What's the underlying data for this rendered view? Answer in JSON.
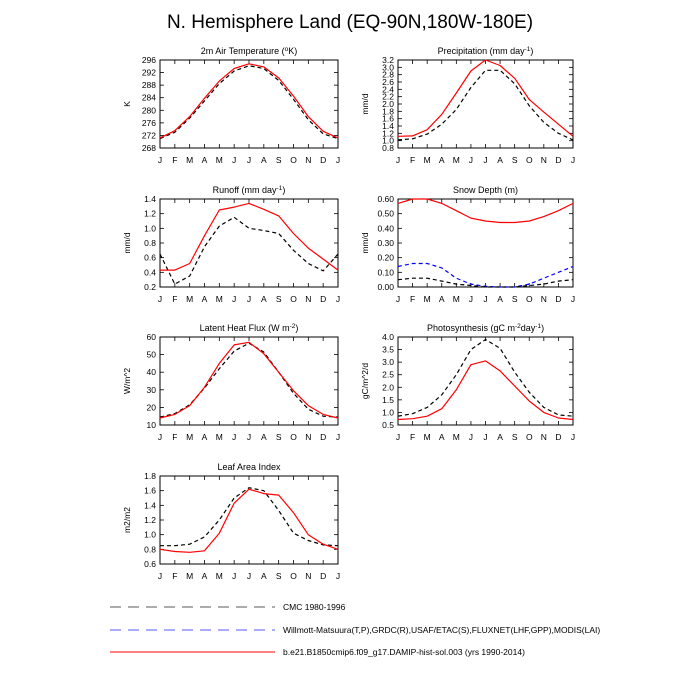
{
  "figure": {
    "title": "N. Hemisphere Land (EQ-90N,180W-180E)",
    "months": [
      "J",
      "F",
      "M",
      "A",
      "M",
      "J",
      "J",
      "A",
      "S",
      "O",
      "N",
      "D",
      "J"
    ]
  },
  "legend": [
    {
      "label": "CMC 1980-1996",
      "color": "#000000",
      "dash": "dashed"
    },
    {
      "label": "Willmott-Matsuura(T,P),GRDC(R),USAF/ETAC(S),FLUXNET(LHF,GPP),MODIS(LAI)",
      "color": "#0000ff",
      "dash": "dashed"
    },
    {
      "label": "b.e21.B1850cmip6.f09_g17.DAMIP-hist-sol.003 (yrs 1990-2014)",
      "color": "#ff0000",
      "dash": "solid"
    }
  ],
  "chart_data": [
    {
      "type": "line",
      "title": "2m Air Temperature (°K)",
      "ylabel": "K",
      "ylim": [
        268,
        296
      ],
      "yticks": [
        268,
        272,
        276,
        280,
        284,
        288,
        292,
        296
      ],
      "series": [
        {
          "color": "#000000",
          "dash": "dashed",
          "values": [
            271.0,
            273.0,
            277.5,
            283.0,
            288.5,
            292.5,
            294.2,
            293.3,
            289.5,
            283.5,
            277.0,
            272.5,
            271.0
          ]
        },
        {
          "color": "#ff0000",
          "dash": "solid",
          "values": [
            271.2,
            273.5,
            278.0,
            283.8,
            289.3,
            293.3,
            294.8,
            293.8,
            290.3,
            284.5,
            278.0,
            273.3,
            271.2
          ]
        }
      ]
    },
    {
      "type": "line",
      "title": "Precipitation (mm day-1)",
      "ylabel": "mm/d",
      "ylim": [
        0.8,
        3.2
      ],
      "yticks": [
        0.8,
        1.0,
        1.2,
        1.4,
        1.6,
        1.8,
        2.0,
        2.2,
        2.4,
        2.6,
        2.8,
        3.0,
        3.2
      ],
      "series": [
        {
          "color": "#000000",
          "dash": "dashed",
          "values": [
            1.02,
            1.05,
            1.18,
            1.45,
            1.85,
            2.45,
            2.92,
            2.92,
            2.55,
            1.95,
            1.5,
            1.2,
            1.02
          ]
        },
        {
          "color": "#ff0000",
          "dash": "solid",
          "values": [
            1.12,
            1.13,
            1.3,
            1.72,
            2.3,
            2.9,
            3.2,
            3.05,
            2.7,
            2.12,
            1.78,
            1.45,
            1.12
          ]
        }
      ]
    },
    {
      "type": "line",
      "title": "Runoff (mm day-1)",
      "ylabel": "mm/d",
      "ylim": [
        0.2,
        1.4
      ],
      "yticks": [
        0.2,
        0.4,
        0.6,
        0.8,
        1.0,
        1.2,
        1.4
      ],
      "series": [
        {
          "color": "#000000",
          "dash": "dashed",
          "values": [
            0.65,
            0.24,
            0.35,
            0.75,
            1.03,
            1.15,
            1.0,
            0.97,
            0.93,
            0.7,
            0.52,
            0.42,
            0.65
          ]
        },
        {
          "color": "#ff0000",
          "dash": "solid",
          "values": [
            0.43,
            0.43,
            0.52,
            0.9,
            1.25,
            1.29,
            1.34,
            1.26,
            1.17,
            0.93,
            0.73,
            0.58,
            0.43
          ]
        }
      ]
    },
    {
      "type": "line",
      "title": "Snow Depth (m)",
      "ylabel": "mm/d",
      "ylim": [
        0,
        0.6
      ],
      "yticks": [
        0.0,
        0.1,
        0.2,
        0.3,
        0.4,
        0.5,
        0.6
      ],
      "series": [
        {
          "color": "#0000ff",
          "dash": "dashed",
          "values": [
            0.14,
            0.16,
            0.16,
            0.13,
            0.06,
            0.02,
            0.005,
            0.0,
            0.0,
            0.02,
            0.06,
            0.1,
            0.14
          ]
        },
        {
          "color": "#000000",
          "dash": "dashed",
          "values": [
            0.05,
            0.06,
            0.06,
            0.04,
            0.02,
            0.01,
            0.0,
            0.0,
            0.0,
            0.01,
            0.02,
            0.04,
            0.05
          ]
        },
        {
          "color": "#ff0000",
          "dash": "solid",
          "values": [
            0.57,
            0.6,
            0.6,
            0.57,
            0.52,
            0.47,
            0.45,
            0.44,
            0.44,
            0.45,
            0.48,
            0.52,
            0.57
          ]
        }
      ]
    },
    {
      "type": "line",
      "title": "Latent Heat Flux (W m-2)",
      "ylabel": "W/m^2",
      "ylim": [
        10,
        60
      ],
      "yticks": [
        10,
        20,
        30,
        40,
        50,
        60
      ],
      "series": [
        {
          "color": "#000000",
          "dash": "dashed",
          "values": [
            14.5,
            16.5,
            21.5,
            31.0,
            42.0,
            52.0,
            56.5,
            51.5,
            40.0,
            28.0,
            19.0,
            15.0,
            14.5
          ]
        },
        {
          "color": "#ff0000",
          "dash": "solid",
          "values": [
            14.0,
            16.0,
            21.0,
            31.5,
            45.0,
            55.5,
            57.0,
            50.5,
            40.0,
            29.5,
            21.0,
            16.0,
            14.0
          ]
        }
      ]
    },
    {
      "type": "line",
      "title": "Photosynthesis (gC m-2day-1)",
      "ylabel": "gC/m^2/d",
      "ylim": [
        0.5,
        4.0
      ],
      "yticks": [
        0.5,
        1.0,
        1.5,
        2.0,
        2.5,
        3.0,
        3.5,
        4.0
      ],
      "series": [
        {
          "color": "#000000",
          "dash": "dashed",
          "values": [
            0.85,
            0.95,
            1.2,
            1.7,
            2.5,
            3.5,
            3.9,
            3.55,
            2.6,
            1.8,
            1.2,
            0.9,
            0.85
          ]
        },
        {
          "color": "#ff0000",
          "dash": "solid",
          "values": [
            0.72,
            0.75,
            0.85,
            1.15,
            1.9,
            2.9,
            3.05,
            2.65,
            2.05,
            1.45,
            1.0,
            0.78,
            0.72
          ]
        }
      ]
    },
    {
      "type": "line",
      "title": "Leaf Area Index",
      "ylabel": "m2/m2",
      "ylim": [
        0.6,
        1.8
      ],
      "yticks": [
        0.6,
        0.8,
        1.0,
        1.2,
        1.4,
        1.6,
        1.8
      ],
      "series": [
        {
          "color": "#000000",
          "dash": "dashed",
          "values": [
            0.85,
            0.85,
            0.87,
            0.97,
            1.2,
            1.5,
            1.64,
            1.6,
            1.33,
            1.02,
            0.92,
            0.86,
            0.85
          ]
        },
        {
          "color": "#ff0000",
          "dash": "solid",
          "values": [
            0.8,
            0.77,
            0.76,
            0.78,
            1.02,
            1.43,
            1.62,
            1.56,
            1.54,
            1.3,
            1.0,
            0.87,
            0.8
          ]
        }
      ]
    }
  ]
}
